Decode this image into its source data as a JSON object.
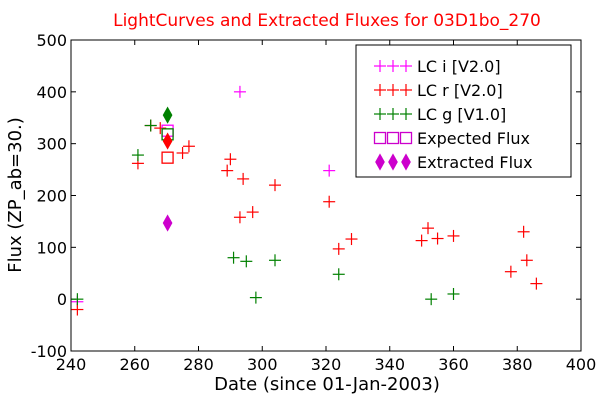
{
  "chart_data": {
    "type": "scatter",
    "title": "LightCurves and Extracted Fluxes for 03D1bo_270",
    "title_color": "#ff0000",
    "xlabel": "Date (since 01-Jan-2003)",
    "ylabel": "Flux (ZP_ab=30.)",
    "xlim": [
      240,
      400
    ],
    "ylim": [
      -100,
      500
    ],
    "x_ticks": [
      240,
      260,
      280,
      300,
      320,
      340,
      360,
      380,
      400
    ],
    "y_ticks": [
      -100,
      0,
      100,
      200,
      300,
      400,
      500
    ],
    "grid": false,
    "legend_position": "top-right",
    "series": [
      {
        "name": "LC i [V2.0]",
        "marker": "plus",
        "color": "#ff00ff",
        "points": [
          [
            242,
            -5
          ],
          [
            293,
            400
          ],
          [
            321,
            248
          ]
        ]
      },
      {
        "name": "LC r [V2.0]",
        "marker": "plus",
        "color": "#ff0000",
        "points": [
          [
            242,
            -20
          ],
          [
            261,
            262
          ],
          [
            265,
            335
          ],
          [
            268,
            330
          ],
          [
            275,
            282
          ],
          [
            277,
            295
          ],
          [
            289,
            248
          ],
          [
            290,
            270
          ],
          [
            293,
            158
          ],
          [
            294,
            232
          ],
          [
            297,
            168
          ],
          [
            304,
            220
          ],
          [
            321,
            188
          ],
          [
            324,
            97
          ],
          [
            328,
            116
          ],
          [
            350,
            113
          ],
          [
            352,
            137
          ],
          [
            355,
            117
          ],
          [
            360,
            122
          ],
          [
            378,
            53
          ],
          [
            382,
            130
          ],
          [
            383,
            75
          ],
          [
            386,
            30
          ]
        ]
      },
      {
        "name": "LC g [V1.0]",
        "marker": "plus",
        "color": "#008000",
        "points": [
          [
            242,
            0
          ],
          [
            261,
            278
          ],
          [
            265,
            335
          ],
          [
            291,
            80
          ],
          [
            295,
            73
          ],
          [
            298,
            3
          ],
          [
            304,
            75
          ],
          [
            324,
            48
          ],
          [
            353,
            0
          ],
          [
            360,
            10
          ]
        ]
      },
      {
        "name": "Expected Flux",
        "marker": "square",
        "points": [
          [
            270.3,
            325,
            "#ff00ff"
          ],
          [
            270.3,
            318,
            "#008000"
          ],
          [
            270.3,
            273,
            "#ff0000"
          ]
        ]
      },
      {
        "name": "Extracted Flux",
        "marker": "diamond",
        "points": [
          [
            270.3,
            147,
            "#cc00cc"
          ],
          [
            270.3,
            355,
            "#008000"
          ],
          [
            270.3,
            305,
            "#ff0000"
          ]
        ]
      }
    ],
    "legend": [
      {
        "label": "LC i [V2.0]",
        "marker": "plus",
        "colors": [
          "#ff00ff",
          "#ff00ff",
          "#ff00ff"
        ]
      },
      {
        "label": "LC r [V2.0]",
        "marker": "plus",
        "colors": [
          "#ff0000",
          "#ff0000",
          "#ff0000"
        ]
      },
      {
        "label": "LC g [V1.0]",
        "marker": "plus",
        "colors": [
          "#008000",
          "#008000",
          "#008000"
        ]
      },
      {
        "label": "Expected Flux",
        "marker": "square",
        "colors": [
          "#cc00cc",
          "#cc00cc",
          "#cc00cc"
        ]
      },
      {
        "label": "Extracted Flux",
        "marker": "diamond",
        "colors": [
          "#cc00cc",
          "#cc00cc",
          "#cc00cc"
        ]
      }
    ]
  }
}
